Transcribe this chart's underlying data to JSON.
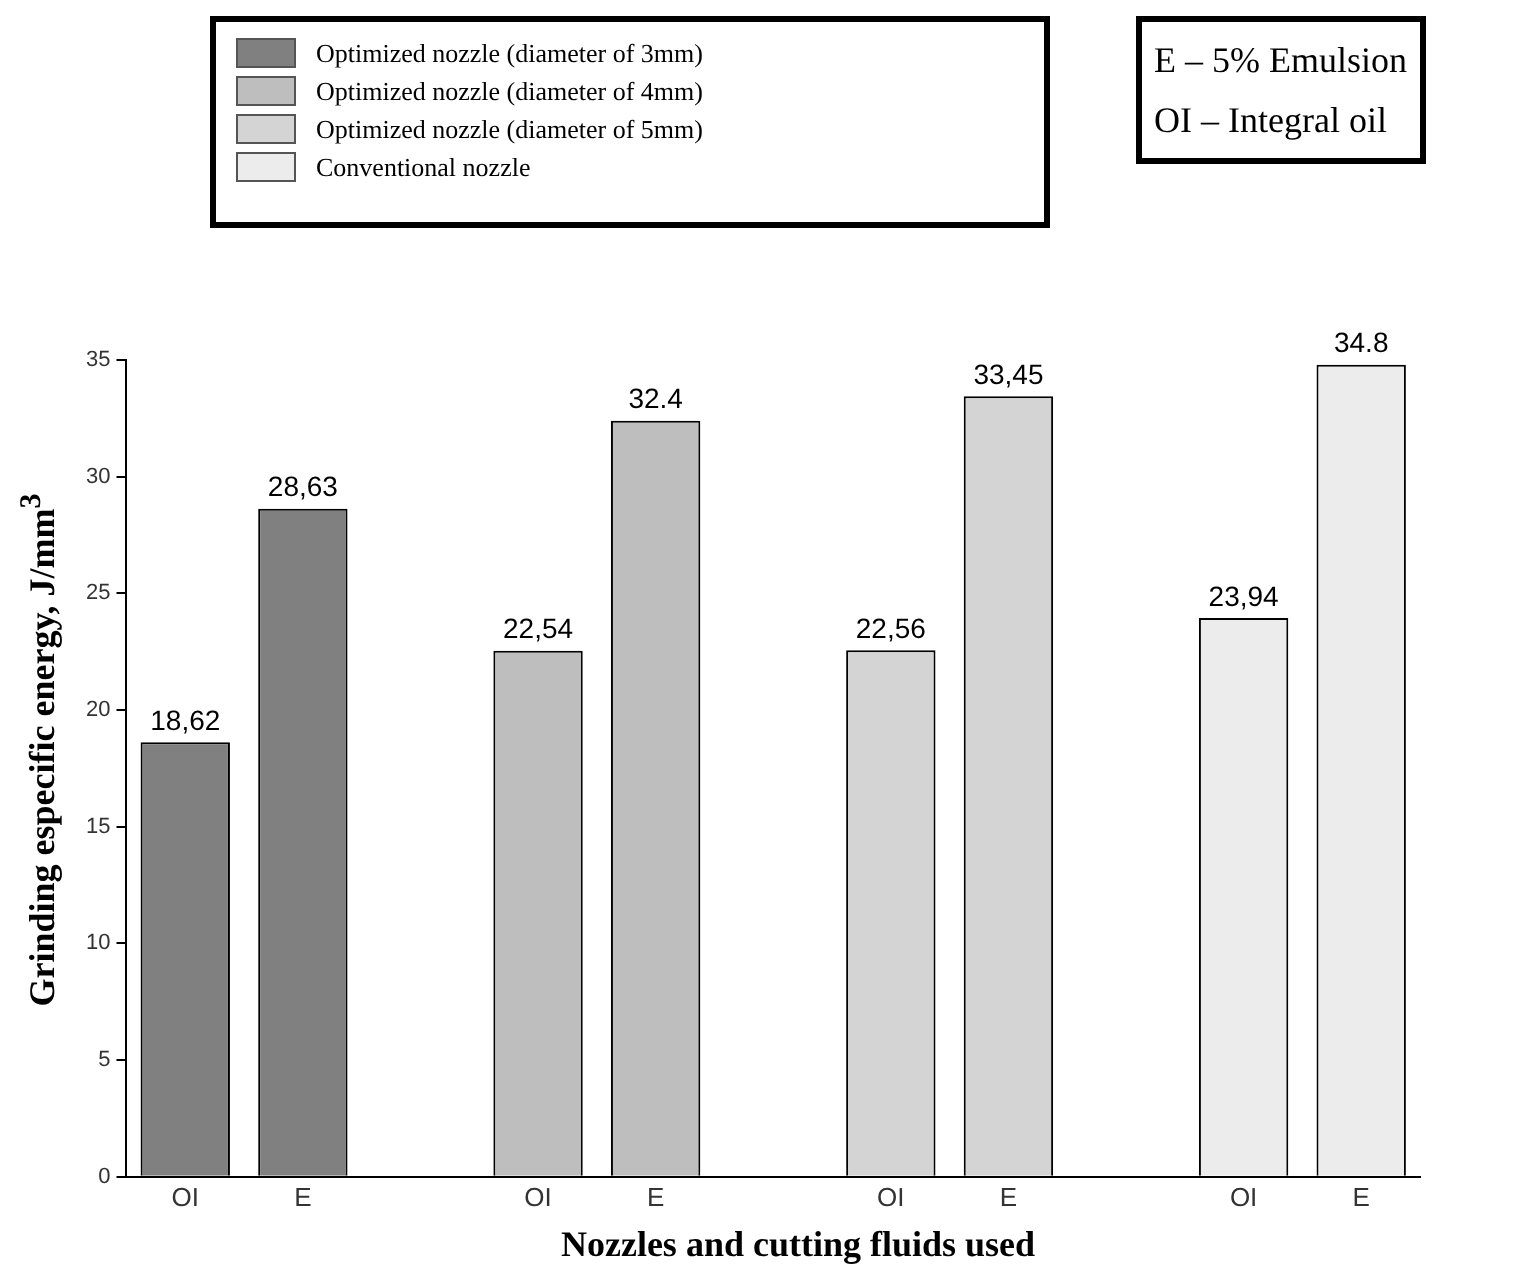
{
  "chart_data": {
    "type": "bar",
    "xlabel": "Nozzles and cutting fluids used",
    "ylabel": "Grinding especific energy, J/mm$^{3}$",
    "categories": [
      "OI",
      "E",
      null,
      "OI",
      "E",
      null,
      "OI",
      "E",
      null,
      "OI",
      "E"
    ],
    "series": [
      {
        "name": "Optimized nozzle (diameter of 3mm)",
        "color": "#808080",
        "values": [
          18.62,
          28.63,
          null,
          null,
          null,
          null,
          null,
          null,
          null,
          null,
          null
        ],
        "value_labels": [
          "18,62",
          "28,63",
          null,
          null,
          null,
          null,
          null,
          null,
          null,
          null,
          null
        ]
      },
      {
        "name": "Optimized nozzle (diameter of 4mm)",
        "color": "#bebebe",
        "values": [
          null,
          null,
          null,
          22.54,
          32.4,
          null,
          null,
          null,
          null,
          null,
          null
        ],
        "value_labels": [
          null,
          null,
          null,
          "22,54",
          "32.4",
          null,
          null,
          null,
          null,
          null,
          null
        ]
      },
      {
        "name": "Optimized nozzle (diameter of 5mm)",
        "color": "#d4d4d4",
        "values": [
          null,
          null,
          null,
          null,
          null,
          null,
          22.56,
          33.45,
          null,
          null,
          null
        ],
        "value_labels": [
          null,
          null,
          null,
          null,
          null,
          null,
          "22,56",
          "33,45",
          null,
          null,
          null
        ]
      },
      {
        "name": "Conventional nozzle",
        "color": "#ececec",
        "values": [
          null,
          null,
          null,
          null,
          null,
          null,
          null,
          null,
          null,
          23.94,
          34.8
        ],
        "value_labels": [
          null,
          null,
          null,
          null,
          null,
          null,
          null,
          null,
          null,
          "23,94",
          "34.8"
        ]
      }
    ],
    "ylim": [
      0,
      35
    ],
    "yticks": [
      0,
      5,
      10,
      15,
      20,
      25,
      30,
      35
    ],
    "grid": false,
    "legend": "top left",
    "annotations": [
      "E – 5% Emulsion",
      "OI – Integral oil"
    ]
  }
}
